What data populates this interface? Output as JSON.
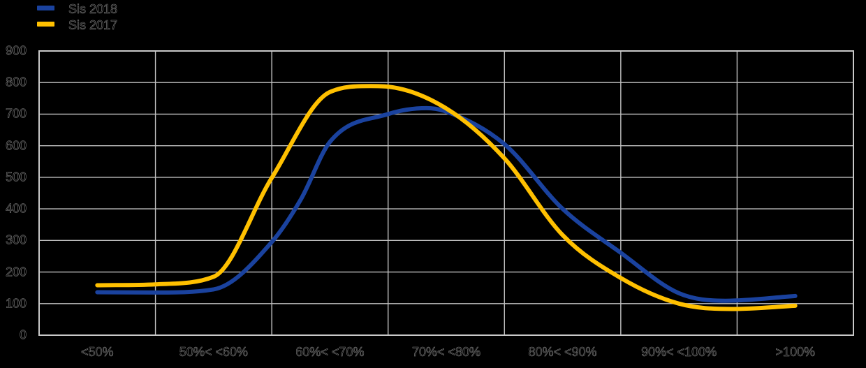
{
  "background_color": "#000000",
  "plot": {
    "border_color": "#c9c9c9",
    "grid_color": "#c2c2c2",
    "text_color": "#000000",
    "text_outline_color": "#8a8a8a"
  },
  "legend": {
    "items": [
      {
        "label": "Sis 2018",
        "color": "#1a429e"
      },
      {
        "label": "Sis 2017",
        "color": "#ffc000"
      }
    ]
  },
  "chart_data": {
    "type": "line",
    "smooth": true,
    "title": "",
    "xlabel": "",
    "ylabel": "",
    "categories": [
      "<50%",
      "50%< <60%",
      "60%< <70%",
      "70%< <80%",
      "80%< <90%",
      "90%< <100%",
      ">100%"
    ],
    "series": [
      {
        "name": "Sis 2018",
        "color": "#1a429e",
        "values": [
          136,
          145,
          612,
          708,
          400,
          133,
          124
        ]
      },
      {
        "name": "Sis 2017",
        "color": "#ffc000",
        "values": [
          158,
          185,
          770,
          718,
          317,
          100,
          93
        ]
      }
    ],
    "ylim": [
      0,
      900
    ],
    "yticks": [
      0,
      100,
      200,
      300,
      400,
      500,
      600,
      700,
      800,
      900
    ],
    "grid": true,
    "legend_position": "top-left",
    "curve_samples": {
      "Sis 2018": {
        "x_category_fractions": [
          0.5,
          1,
          1.5,
          2,
          2.25,
          2.5,
          3,
          3.33,
          3.5,
          4,
          4.5,
          5,
          5.5,
          5.9,
          6.5
        ],
        "values": [
          136,
          135,
          145,
          295,
          430,
          612,
          700,
          719,
          708,
          605,
          400,
          261,
          133,
          109,
          124
        ]
      },
      "Sis 2017": {
        "x_category_fractions": [
          0.5,
          1,
          1.5,
          2,
          2.5,
          2.85,
          3,
          3.5,
          4,
          4.5,
          5,
          5.5,
          5.95,
          6.5
        ],
        "values": [
          158,
          161,
          185,
          498,
          770,
          789,
          787,
          718,
          560,
          317,
          181,
          100,
          83,
          93
        ]
      }
    }
  }
}
